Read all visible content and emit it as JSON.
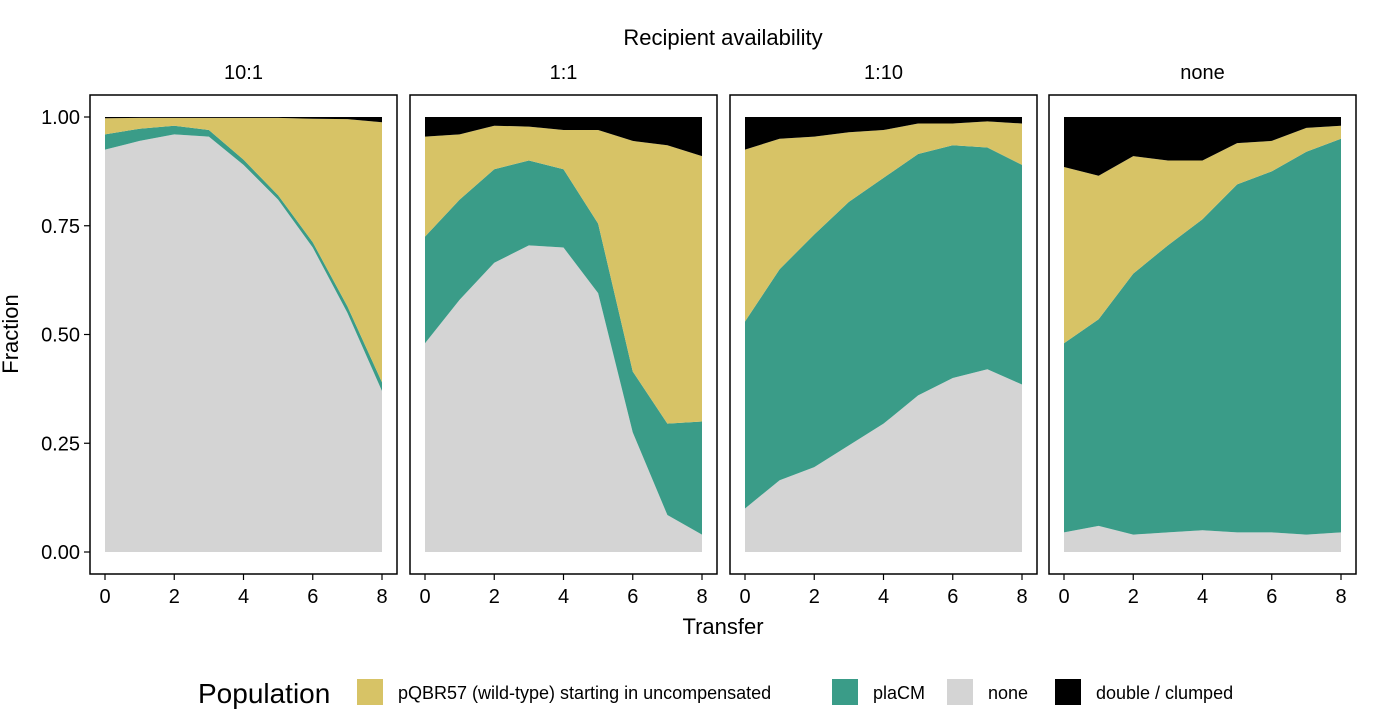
{
  "chart_data": {
    "type": "area",
    "stacking": "fill",
    "super_title": "Recipient availability",
    "xlabel": "Transfer",
    "ylabel": "Fraction",
    "xlim": [
      0,
      8
    ],
    "ylim": [
      0,
      1
    ],
    "x_ticks": [
      0,
      2,
      4,
      6,
      8
    ],
    "y_ticks": [
      0,
      0.25,
      0.5,
      0.75,
      1.0
    ],
    "y_tick_labels": [
      "0.00",
      "0.25",
      "0.50",
      "0.75",
      "1.00"
    ],
    "grid": false,
    "legend": {
      "title": "Population",
      "placement": "bottom",
      "entries": [
        {
          "key": "wildtype",
          "label": "pQBR57 (wild-type) starting in uncompensated",
          "color": "#D7C366"
        },
        {
          "key": "placm",
          "label": "plaCM",
          "color": "#3A9C88"
        },
        {
          "key": "none",
          "label": "none",
          "color": "#D4D4D4"
        },
        {
          "key": "double",
          "label": "double / clumped",
          "color": "#000000"
        }
      ]
    },
    "stack_order_bottom_to_top": [
      "none",
      "placm",
      "wildtype",
      "double"
    ],
    "panels": [
      {
        "label": "10:1",
        "x": [
          0,
          1,
          2,
          3,
          4,
          5,
          6,
          7,
          8
        ],
        "series": {
          "none": [
            0.925,
            0.945,
            0.96,
            0.955,
            0.89,
            0.81,
            0.7,
            0.55,
            0.37
          ],
          "placm": [
            0.035,
            0.028,
            0.02,
            0.015,
            0.012,
            0.01,
            0.012,
            0.015,
            0.02
          ],
          "wildtype": [
            0.037,
            0.025,
            0.018,
            0.028,
            0.096,
            0.178,
            0.284,
            0.43,
            0.598
          ],
          "double": [
            0.003,
            0.002,
            0.002,
            0.002,
            0.002,
            0.002,
            0.004,
            0.005,
            0.012
          ]
        }
      },
      {
        "label": "1:1",
        "x": [
          0,
          1,
          2,
          3,
          4,
          5,
          6,
          7,
          8
        ],
        "series": {
          "none": [
            0.48,
            0.58,
            0.665,
            0.705,
            0.7,
            0.595,
            0.275,
            0.085,
            0.04
          ],
          "placm": [
            0.245,
            0.23,
            0.215,
            0.195,
            0.18,
            0.16,
            0.14,
            0.21,
            0.26
          ],
          "wildtype": [
            0.23,
            0.15,
            0.1,
            0.078,
            0.09,
            0.215,
            0.53,
            0.64,
            0.61
          ],
          "double": [
            0.045,
            0.04,
            0.02,
            0.022,
            0.03,
            0.03,
            0.055,
            0.065,
            0.09
          ]
        }
      },
      {
        "label": "1:10",
        "x": [
          0,
          1,
          2,
          3,
          4,
          5,
          6,
          7,
          8
        ],
        "series": {
          "none": [
            0.1,
            0.165,
            0.195,
            0.245,
            0.295,
            0.36,
            0.4,
            0.42,
            0.385
          ],
          "placm": [
            0.43,
            0.485,
            0.535,
            0.56,
            0.565,
            0.555,
            0.535,
            0.51,
            0.505
          ],
          "wildtype": [
            0.395,
            0.3,
            0.225,
            0.16,
            0.11,
            0.07,
            0.05,
            0.06,
            0.095
          ],
          "double": [
            0.075,
            0.05,
            0.045,
            0.035,
            0.03,
            0.015,
            0.015,
            0.01,
            0.015
          ]
        }
      },
      {
        "label": "none",
        "x": [
          0,
          1,
          2,
          3,
          4,
          5,
          6,
          7,
          8
        ],
        "series": {
          "none": [
            0.045,
            0.06,
            0.04,
            0.045,
            0.05,
            0.045,
            0.045,
            0.04,
            0.045
          ],
          "placm": [
            0.435,
            0.475,
            0.6,
            0.66,
            0.715,
            0.8,
            0.83,
            0.88,
            0.905
          ],
          "wildtype": [
            0.405,
            0.33,
            0.27,
            0.195,
            0.135,
            0.095,
            0.07,
            0.055,
            0.03
          ],
          "double": [
            0.115,
            0.135,
            0.09,
            0.1,
            0.1,
            0.06,
            0.055,
            0.025,
            0.02
          ]
        }
      }
    ]
  }
}
